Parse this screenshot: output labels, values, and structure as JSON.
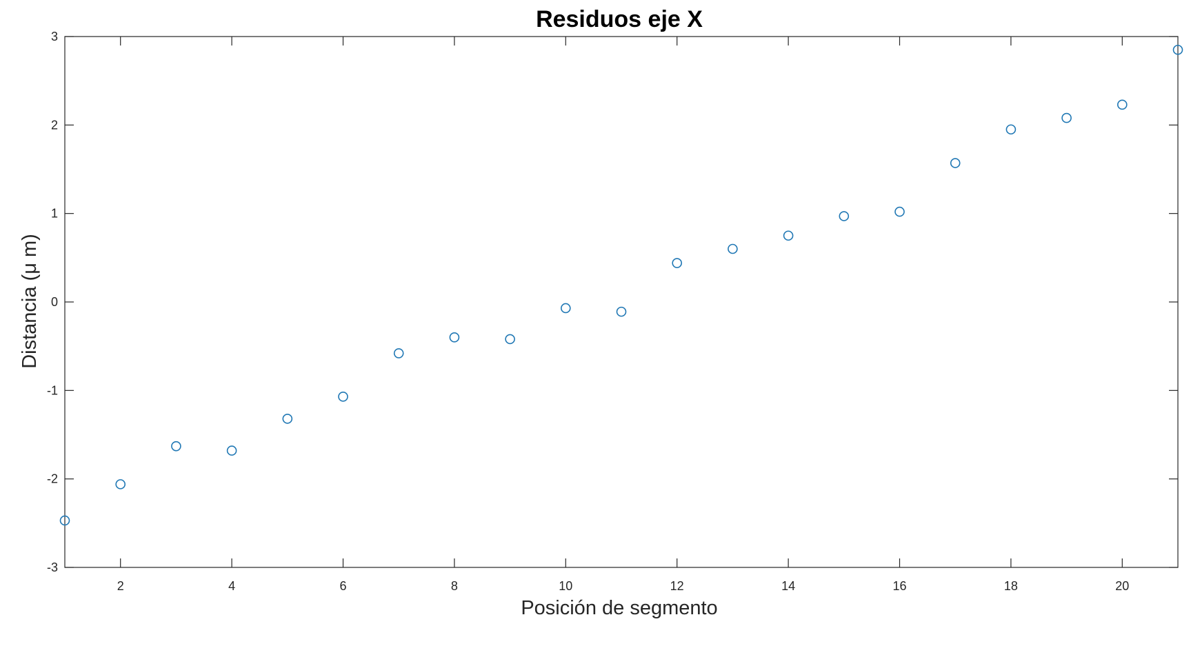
{
  "chart_data": {
    "type": "scatter",
    "title": "Residuos eje X",
    "xlabel": "Posición de segmento",
    "ylabel": "Distancia (μ m)",
    "xlim": [
      1,
      21
    ],
    "ylim": [
      -3,
      3
    ],
    "xticks": [
      2,
      4,
      6,
      8,
      10,
      12,
      14,
      16,
      18,
      20
    ],
    "yticks": [
      -3,
      -2,
      -1,
      0,
      1,
      2,
      3
    ],
    "grid": false,
    "box": true,
    "marker": "circle",
    "marker_color": "#1f77b4",
    "series": [
      {
        "x": [
          1,
          2,
          3,
          4,
          5,
          6,
          7,
          8,
          9,
          10,
          11,
          12,
          13,
          14,
          15,
          16,
          17,
          18,
          19,
          20,
          21
        ],
        "y": [
          -2.47,
          -2.06,
          -1.63,
          -1.68,
          -1.32,
          -1.07,
          -0.58,
          -0.4,
          -0.42,
          -0.07,
          -0.11,
          0.44,
          0.6,
          0.75,
          0.97,
          1.02,
          1.57,
          1.95,
          2.08,
          2.23,
          2.85
        ]
      }
    ]
  }
}
